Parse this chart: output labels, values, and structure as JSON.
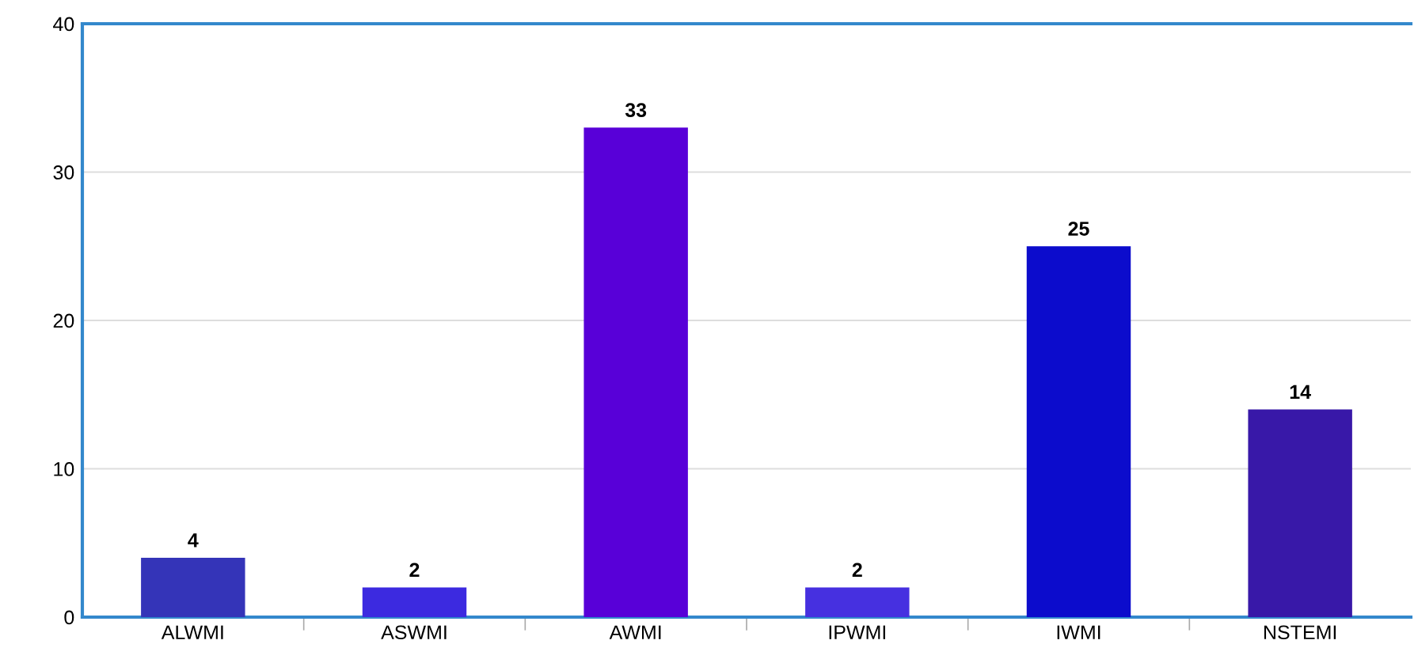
{
  "chart_data": {
    "type": "bar",
    "categories": [
      "ALWMI",
      "ASWMI",
      "AWMI",
      "IPWMI",
      "IWMI",
      "NSTEMI"
    ],
    "values": [
      4,
      2,
      33,
      2,
      25,
      14
    ],
    "colors": [
      "#3434b8",
      "#3c2ae0",
      "#5800d8",
      "#4630e0",
      "#0c0ccc",
      "#3818a8"
    ],
    "ylim": [
      0,
      40
    ],
    "yticks": [
      0,
      10,
      20,
      30,
      40
    ],
    "grid": "y",
    "data_labels": true
  }
}
